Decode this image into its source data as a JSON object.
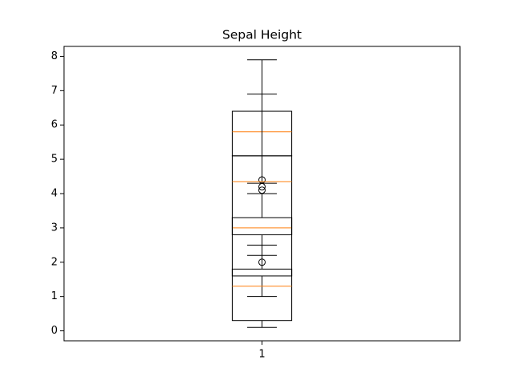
{
  "chart_data": {
    "type": "box",
    "title": "Sepal Height",
    "xticks": [
      {
        "value": 1,
        "label": "1"
      }
    ],
    "xlim": [
      0.5,
      1.5
    ],
    "ylim": [
      -0.29,
      8.29
    ],
    "yticks": [
      0,
      1,
      2,
      3,
      4,
      5,
      6,
      7,
      8
    ],
    "box_color": "#000000",
    "median_color": "#ff7f0e",
    "boxes": [
      {
        "position": 1,
        "whislo": 4.3,
        "q1": 5.1,
        "median": 5.8,
        "q3": 6.4,
        "whishi": 7.9,
        "fliers": []
      },
      {
        "position": 1,
        "whislo": 2.2,
        "q1": 2.8,
        "median": 3.0,
        "q3": 3.3,
        "whishi": 4.0,
        "fliers": [
          4.4,
          4.1,
          4.2,
          2.0
        ]
      },
      {
        "position": 1,
        "whislo": 1.0,
        "q1": 1.6,
        "median": 4.35,
        "q3": 5.1,
        "whishi": 6.9,
        "fliers": []
      },
      {
        "position": 1,
        "whislo": 0.1,
        "q1": 0.3,
        "median": 1.3,
        "q3": 1.8,
        "whishi": 2.5,
        "fliers": []
      }
    ]
  }
}
